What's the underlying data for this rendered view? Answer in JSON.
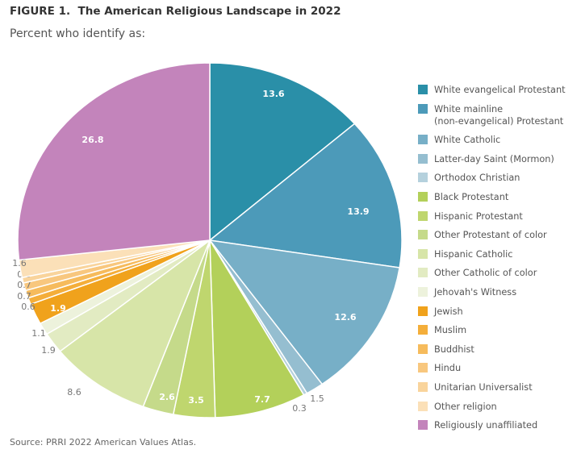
{
  "title": "FIGURE 1.  The American Religious Landscape in 2022",
  "subtitle": "Percent who identify as:",
  "source": "Source: PRRI 2022 American Values Atlas.",
  "chart_data": {
    "type": "pie",
    "title": "FIGURE 1.  The American Religious Landscape in 2022",
    "subtitle": "Percent who identify as:",
    "legend_position": "right",
    "slices": [
      {
        "name": "White evangelical Protestant",
        "value": 13.6,
        "label": "13.6",
        "color": "#2a8fa8"
      },
      {
        "name": "White mainline\n(non-evangelical) Protestant",
        "value": 13.9,
        "label": "13.9",
        "color": "#4c9ab9"
      },
      {
        "name": "White Catholic",
        "value": 12.6,
        "label": "12.6",
        "color": "#77afc7"
      },
      {
        "name": "Latter-day Saint (Mormon)",
        "value": 1.5,
        "label": "1.5",
        "color": "#95bed0"
      },
      {
        "name": "Orthodox Christian",
        "value": 0.3,
        "label": "0.3",
        "color": "#b5d1dd"
      },
      {
        "name": "Black Protestant",
        "value": 7.7,
        "label": "7.7",
        "color": "#b3d05a"
      },
      {
        "name": "Hispanic Protestant",
        "value": 3.5,
        "label": "3.5",
        "color": "#bfd66e"
      },
      {
        "name": "Other Protestant of color",
        "value": 2.6,
        "label": "2.6",
        "color": "#c5da8a"
      },
      {
        "name": "Hispanic Catholic",
        "value": 8.6,
        "label": "8.6",
        "color": "#d7e5a8"
      },
      {
        "name": "Other Catholic of color",
        "value": 1.9,
        "label": "1.9",
        "color": "#e2ebc2"
      },
      {
        "name": "Jehovah's Witness",
        "value": 1.1,
        "label": "1.1",
        "color": "#edf2dc"
      },
      {
        "name": "Jewish",
        "value": 1.9,
        "label": "1.9",
        "color": "#f0a21c"
      },
      {
        "name": "Muslim",
        "value": 0.6,
        "label": "0.6",
        "color": "#f4ae3a"
      },
      {
        "name": "Buddhist",
        "value": 0.7,
        "label": "0.7",
        "color": "#f6bb5c"
      },
      {
        "name": "Hindu",
        "value": 0.7,
        "label": "0.7",
        "color": "#f8c77e"
      },
      {
        "name": "Unitarian Universalist",
        "value": 0.5,
        "label": "0.5",
        "color": "#f9d49c"
      },
      {
        "name": "Other religion",
        "value": 1.6,
        "label": "1.6",
        "color": "#fbe0b8"
      },
      {
        "name": "Religiously unaffiliated",
        "value": 26.8,
        "label": "26.8",
        "color": "#c384bb"
      }
    ]
  }
}
